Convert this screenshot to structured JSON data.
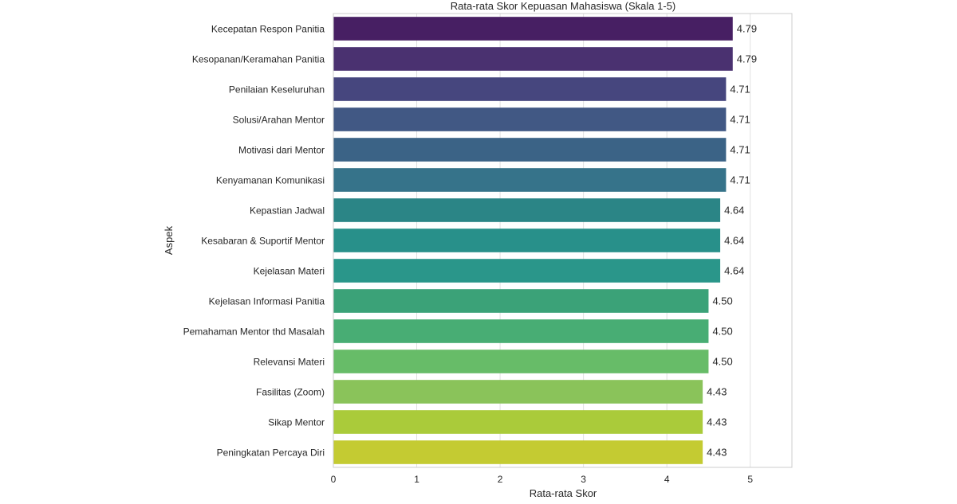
{
  "chart_data": {
    "type": "bar",
    "orientation": "horizontal",
    "title": "Rata-rata Skor Kepuasan Mahasiswa (Skala 1-5)",
    "xlabel": "Rata-rata Skor",
    "ylabel": "Aspek",
    "xlim": [
      0,
      5.5
    ],
    "xticks": [
      0,
      1,
      2,
      3,
      4,
      5
    ],
    "grid": true,
    "legend": "none",
    "categories": [
      "Kecepatan Respon Panitia",
      "Kesopanan/Keramahan Panitia",
      "Penilaian Keseluruhan",
      "Solusi/Arahan Mentor",
      "Motivasi dari Mentor",
      "Kenyamanan Komunikasi",
      "Kepastian Jadwal",
      "Kesabaran & Suportif Mentor",
      "Kejelasan Materi",
      "Kejelasan Informasi Panitia",
      "Pemahaman Mentor thd Masalah",
      "Relevansi Materi",
      "Fasilitas (Zoom)",
      "Sikap Mentor",
      "Peningkatan Percaya Diri"
    ],
    "values": [
      4.79,
      4.79,
      4.71,
      4.71,
      4.71,
      4.71,
      4.64,
      4.64,
      4.64,
      4.5,
      4.5,
      4.5,
      4.43,
      4.43,
      4.43
    ],
    "value_labels": [
      "4.79",
      "4.79",
      "4.71",
      "4.71",
      "4.71",
      "4.71",
      "4.64",
      "4.64",
      "4.64",
      "4.50",
      "4.50",
      "4.50",
      "4.43",
      "4.43",
      "4.43"
    ],
    "colors": [
      "#471f63",
      "#4a3170",
      "#46467e",
      "#415884",
      "#3b6386",
      "#36738a",
      "#2b8586",
      "#28908a",
      "#2a968a",
      "#3ba278",
      "#48ad74",
      "#67bc68",
      "#8ac35a",
      "#aacb3a",
      "#c4cb32"
    ]
  }
}
